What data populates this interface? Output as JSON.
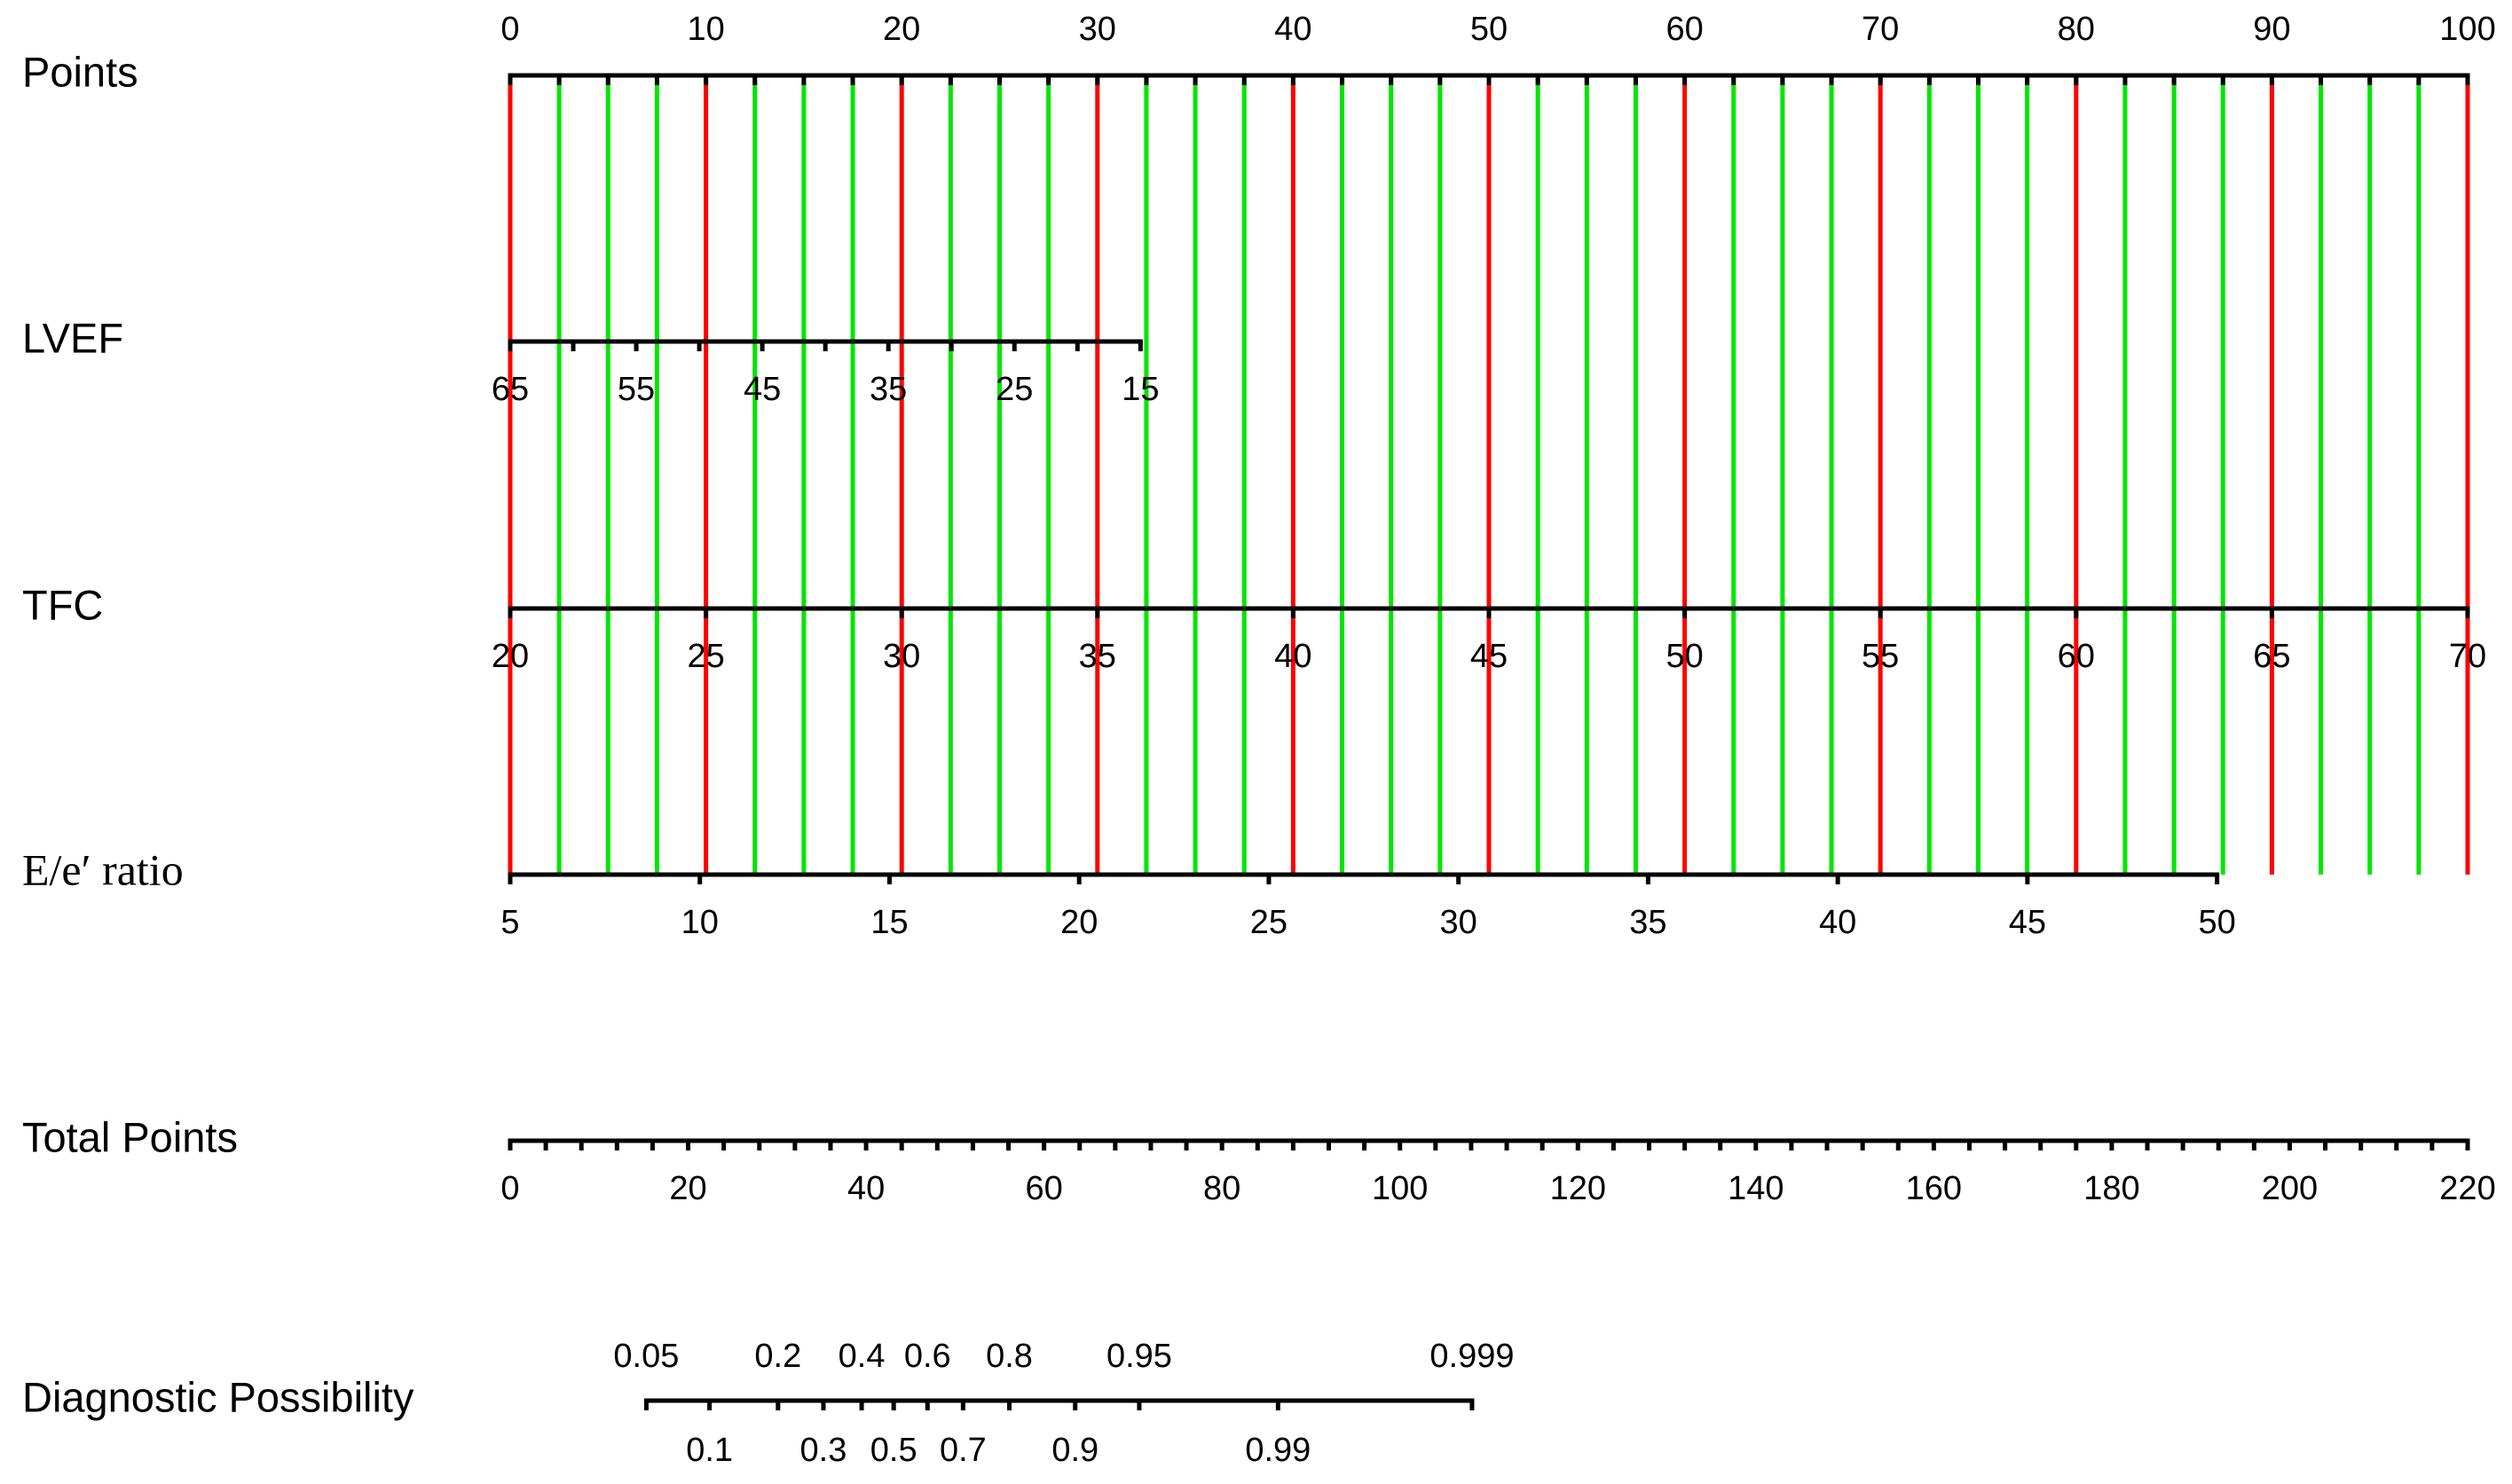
{
  "chart_data": {
    "type": "nomogram",
    "grid": true,
    "grid_colors": {
      "major": "#ff0000",
      "minor": "#00e600"
    },
    "axes": [
      {
        "name": "Points",
        "lim": [
          0,
          100
        ],
        "points": [
          0,
          100
        ],
        "label_side": "above",
        "ticks": [
          0,
          10,
          20,
          30,
          40,
          50,
          60,
          70,
          80,
          90,
          100
        ],
        "minor_ticks": [
          2.5,
          5,
          7.5,
          12.5,
          15,
          17.5,
          22.5,
          25,
          27.5,
          32.5,
          35,
          37.5,
          42.5,
          45,
          47.5,
          52.5,
          55,
          57.5,
          62.5,
          65,
          67.5,
          72.5,
          75,
          77.5,
          82.5,
          85,
          87.5,
          92.5,
          95,
          97.5
        ]
      },
      {
        "name": "LVEF",
        "lim": [
          65,
          15
        ],
        "points": [
          0,
          32.2
        ],
        "label_side": "below",
        "ticks": [
          65,
          55,
          45,
          35,
          25,
          15
        ],
        "minor_ticks": [
          60,
          50,
          40,
          30,
          20
        ]
      },
      {
        "name": "TFC",
        "lim": [
          20,
          70
        ],
        "points": [
          0,
          100
        ],
        "label_side": "below",
        "ticks": [
          20,
          25,
          30,
          35,
          40,
          45,
          50,
          55,
          60,
          65,
          70
        ]
      },
      {
        "name": "E/e′ ratio",
        "lim": [
          5,
          50
        ],
        "points": [
          0,
          87.2
        ],
        "label_side": "below",
        "ticks": [
          5,
          10,
          15,
          20,
          25,
          30,
          35,
          40,
          45,
          50
        ]
      },
      {
        "name": "Total Points",
        "lim": [
          0,
          220
        ],
        "label_side": "below",
        "ticks": [
          0,
          20,
          40,
          60,
          80,
          100,
          120,
          140,
          160,
          180,
          200,
          220
        ],
        "minor_ticks": [
          4,
          8,
          12,
          16,
          24,
          28,
          32,
          36,
          44,
          48,
          52,
          56,
          64,
          68,
          72,
          76,
          84,
          88,
          92,
          96,
          104,
          108,
          112,
          116,
          124,
          128,
          132,
          136,
          144,
          148,
          152,
          156,
          164,
          168,
          172,
          176,
          184,
          188,
          192,
          196,
          204,
          208,
          212,
          216
        ]
      },
      {
        "name": "Diagnostic Possibility",
        "label_side": "alternate",
        "ticks": [
          0.05,
          0.1,
          0.2,
          0.3,
          0.4,
          0.5,
          0.6,
          0.7,
          0.8,
          0.9,
          0.95,
          0.99,
          0.999
        ],
        "tick_points": [
          15.3,
          22.4,
          30.1,
          35.2,
          39.5,
          43.1,
          46.9,
          50.9,
          56.1,
          63.5,
          70.7,
          86.3,
          108.1
        ]
      }
    ]
  }
}
